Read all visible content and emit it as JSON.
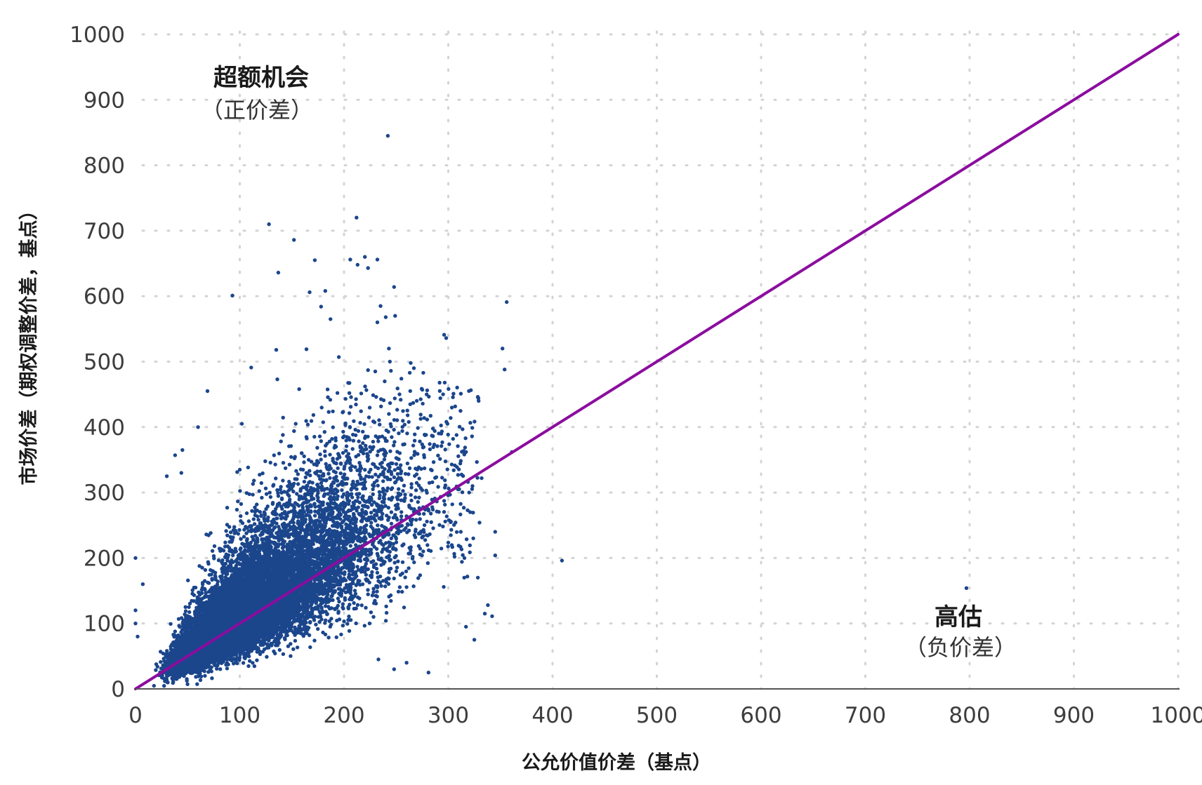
{
  "chart_data": {
    "type": "scatter",
    "xlabel": "公允价值价差（基点）",
    "ylabel": "市场价差（期权调整价差，基点）",
    "xlim": [
      0,
      1000
    ],
    "ylim": [
      0,
      1000
    ],
    "x_ticks": [
      "0",
      "100",
      "200",
      "300",
      "400",
      "500",
      "600",
      "700",
      "800",
      "900",
      "1000"
    ],
    "y_ticks": [
      "0",
      "100",
      "200",
      "300",
      "400",
      "500",
      "600",
      "700",
      "800",
      "900",
      "1000"
    ],
    "grid": "dotted",
    "colors": {
      "points": "#1b468c",
      "line": "#8b0d9e",
      "grid": "#d3d3d3",
      "axis": "#555555"
    },
    "annotations": [
      {
        "title": "超额机会",
        "subtitle": "（正价差）",
        "x": 120,
        "y": 910
      },
      {
        "title": "高估",
        "subtitle": "（负价差）",
        "x": 790,
        "y": 100
      }
    ],
    "reference_line": {
      "x": [
        0,
        1000
      ],
      "y": [
        0,
        1000
      ]
    },
    "cloud": {
      "count": 12000,
      "x_center": 110,
      "y_center": 125,
      "x_spread": 45,
      "y_ratio_median": 1.13,
      "y_ratio_spread": 0.32
    },
    "outliers": [
      [
        242,
        845
      ],
      [
        128,
        710
      ],
      [
        212,
        720
      ],
      [
        152,
        686
      ],
      [
        93,
        601
      ],
      [
        137,
        636
      ],
      [
        220,
        660
      ],
      [
        206,
        656
      ],
      [
        232,
        656
      ],
      [
        172,
        655
      ],
      [
        213,
        648
      ],
      [
        223,
        643
      ],
      [
        167,
        606
      ],
      [
        182,
        608
      ],
      [
        248,
        614
      ],
      [
        178,
        584
      ],
      [
        235,
        585
      ],
      [
        187,
        565
      ],
      [
        240,
        568
      ],
      [
        232,
        560
      ],
      [
        249,
        570
      ],
      [
        356,
        591
      ],
      [
        296,
        541
      ],
      [
        298,
        536
      ],
      [
        352,
        520
      ],
      [
        354,
        488
      ],
      [
        135,
        518
      ],
      [
        164,
        519
      ],
      [
        195,
        507
      ],
      [
        243,
        520
      ],
      [
        244,
        500
      ],
      [
        223,
        487
      ],
      [
        230,
        485
      ],
      [
        245,
        486
      ],
      [
        111,
        491
      ],
      [
        157,
        458
      ],
      [
        136,
        473
      ],
      [
        69,
        455
      ],
      [
        263,
        483
      ],
      [
        305,
        451
      ],
      [
        255,
        474
      ],
      [
        264,
        498
      ],
      [
        267,
        490
      ],
      [
        276,
        483
      ],
      [
        102,
        405
      ],
      [
        60,
        400
      ],
      [
        45,
        365
      ],
      [
        38,
        357
      ],
      [
        295,
        450
      ],
      [
        317,
        362
      ],
      [
        361,
        362
      ],
      [
        332,
        322
      ],
      [
        320,
        300
      ],
      [
        321,
        270
      ],
      [
        330,
        254
      ],
      [
        312,
        240
      ],
      [
        324,
        230
      ],
      [
        345,
        240
      ],
      [
        345,
        204
      ],
      [
        409,
        196
      ],
      [
        797,
        154
      ],
      [
        338,
        128
      ],
      [
        342,
        111
      ],
      [
        335,
        115
      ],
      [
        317,
        95
      ],
      [
        325,
        75
      ],
      [
        0,
        200
      ],
      [
        7,
        160
      ],
      [
        0,
        120
      ],
      [
        0,
        100
      ],
      [
        2,
        80
      ],
      [
        248,
        30
      ],
      [
        233,
        45
      ],
      [
        281,
        25
      ],
      [
        260,
        40
      ],
      [
        30,
        325
      ],
      [
        44,
        330
      ]
    ]
  }
}
